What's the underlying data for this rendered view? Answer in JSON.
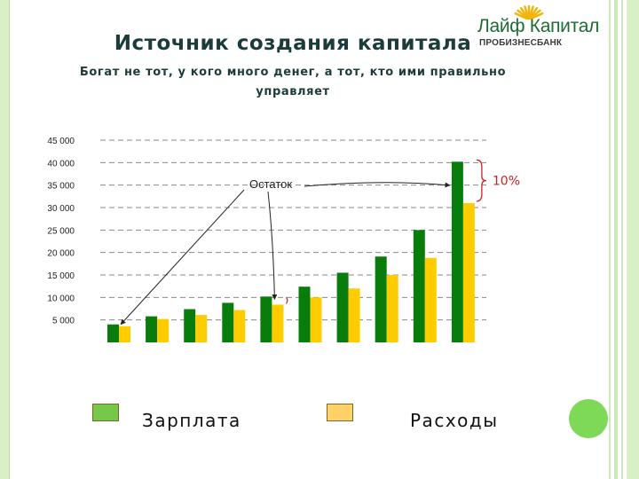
{
  "logo": {
    "name": "Лайф Капитал",
    "sub": "ПРОБИЗНЕСБАНК",
    "accent": "#f2b50c"
  },
  "title": "Источник создания капитала",
  "subtitle": "Богат не тот, у кого много денег, а тот, кто ими правильно управляет",
  "chart_data": {
    "type": "bar",
    "categories": [
      "",
      "",
      "",
      "",
      "",
      "",
      "",
      "",
      "",
      ""
    ],
    "series": [
      {
        "name": "Зарплата",
        "color": "#087d0c",
        "values": [
          4000,
          5800,
          7400,
          8800,
          10200,
          12400,
          15500,
          19100,
          25000,
          40200
        ]
      },
      {
        "name": "Расходы",
        "color": "#ffcc00",
        "values": [
          3600,
          5200,
          6100,
          7200,
          8400,
          10000,
          12000,
          15000,
          18800,
          31000
        ]
      }
    ],
    "yticks": [
      "5 000",
      "10 000",
      "15 000",
      "20 000",
      "25 000",
      "30 000",
      "35 000",
      "40 000",
      "45 000"
    ],
    "ylim": [
      0,
      45000
    ],
    "grid": true,
    "annotation": "Остаток",
    "bracket_label": "10%",
    "bracket_color": "#cc2222"
  },
  "legend": [
    {
      "label": "Зарплата",
      "color": "#77c849"
    },
    {
      "label": "Расходы",
      "color": "#ffd166"
    }
  ]
}
